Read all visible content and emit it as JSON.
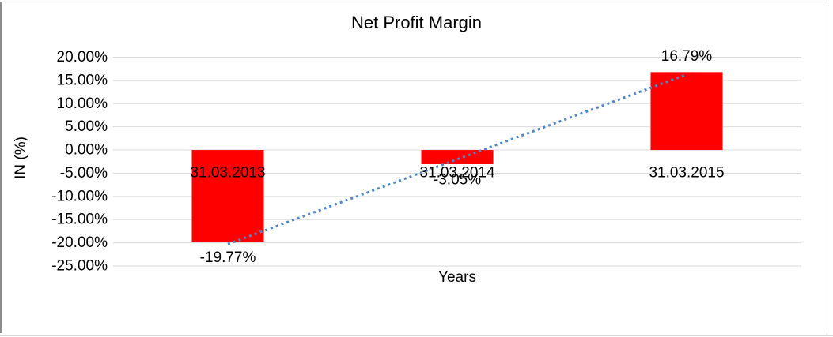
{
  "chart_data": {
    "type": "bar",
    "title": "Net Profit Margin",
    "xlabel": "Years",
    "ylabel": "IN (%)",
    "categories": [
      "31.03.2013",
      "31.03.2014",
      "31.03.2015"
    ],
    "values": [
      -19.77,
      -3.05,
      16.79
    ],
    "value_labels": [
      "-19.77%",
      "-3.05%",
      "16.79%"
    ],
    "ylim": [
      -25,
      20
    ],
    "ytick_step": 5,
    "ytick_labels": [
      "20.00%",
      "15.00%",
      "10.00%",
      "5.00%",
      "0.00%",
      "-5.00%",
      "-10.00%",
      "-15.00%",
      "-20.00%",
      "-25.00%"
    ],
    "grid": true,
    "legend": "none",
    "bar_color": "#ff0000",
    "gridline_color": "#d9d9d9",
    "text_color": "#000000",
    "trendline": {
      "type": "linear",
      "style": "dotted",
      "color": "#4e87c8"
    }
  }
}
